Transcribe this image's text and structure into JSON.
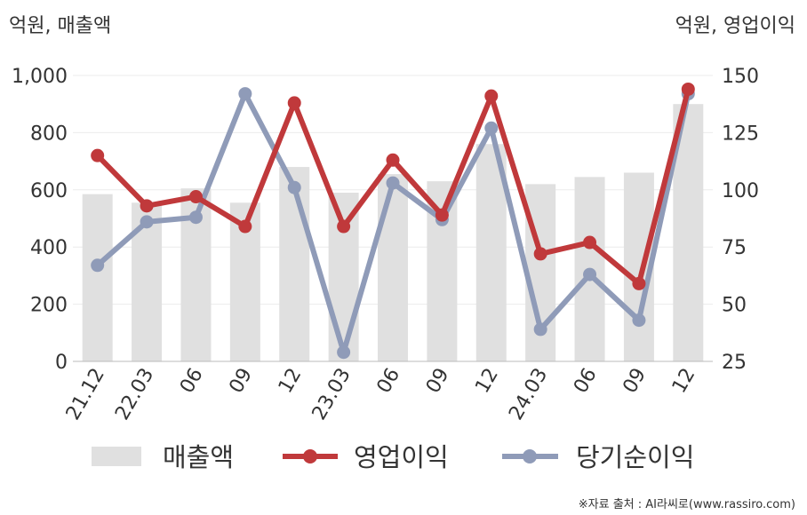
{
  "chart_data": {
    "type": "bar+line",
    "left_unit_label": "억원, 매출액",
    "right_unit_label": "억원, 영업이익",
    "categories": [
      "21.12",
      "22.03",
      "06",
      "09",
      "12",
      "23.03",
      "06",
      "09",
      "12",
      "24.03",
      "06",
      "09",
      "12"
    ],
    "left_axis": {
      "min": 0,
      "max": 1000,
      "ticks": [
        "0",
        "200",
        "400",
        "600",
        "800",
        "1,000"
      ]
    },
    "right_axis": {
      "min": 25,
      "max": 150,
      "ticks": [
        "25",
        "50",
        "75",
        "100",
        "125",
        "150"
      ]
    },
    "series": [
      {
        "name": "매출액",
        "kind": "bar",
        "axis": "left",
        "color": "#e0e0e0",
        "values": [
          585,
          555,
          605,
          555,
          680,
          590,
          655,
          630,
          760,
          620,
          645,
          660,
          900
        ]
      },
      {
        "name": "영업이익",
        "kind": "line",
        "axis": "right",
        "color": "#c0393b",
        "values": [
          115,
          93,
          97,
          84,
          138,
          84,
          113,
          89,
          141,
          72,
          77,
          59,
          144
        ]
      },
      {
        "name": "당기순이익",
        "kind": "line",
        "axis": "right",
        "color": "#8f9bb8",
        "values": [
          67,
          86,
          88,
          142,
          101,
          29,
          103,
          87,
          127,
          39,
          63,
          43,
          142
        ]
      }
    ],
    "grid": true,
    "legend_position": "bottom"
  },
  "source_note": "※자료 출처 : AI라씨로(www.rassiro.com)"
}
